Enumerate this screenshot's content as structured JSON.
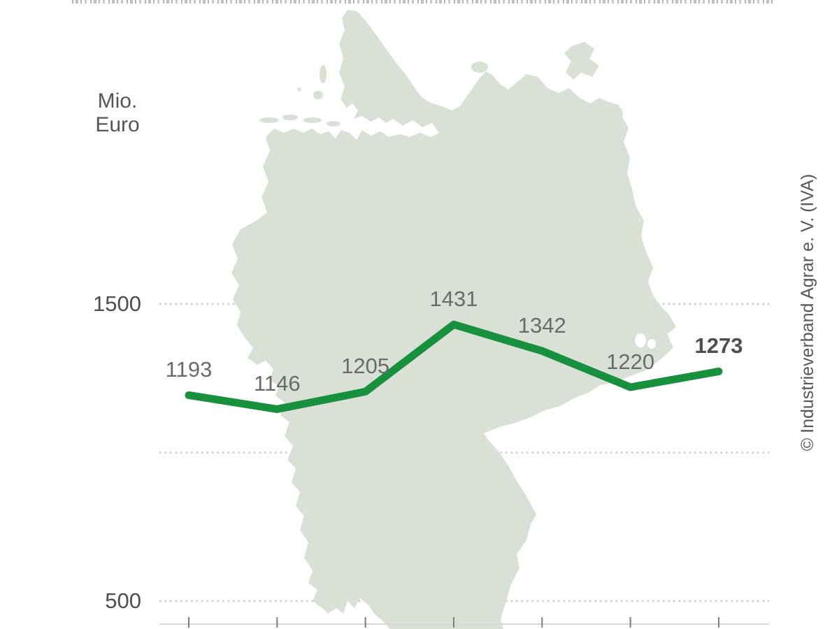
{
  "notes": "static statistics graphic; a title row exists but is cropped/illegible at the very top edge",
  "colors": {
    "line": "#18913f",
    "map_fill": "#d9e1d6",
    "gridline": "#c9c9c9",
    "axis_line": "#d8d8d8",
    "axis_tick": "#7e7e7e",
    "point_label": "#6a6a6a",
    "point_label_emphasis": "#4f4f4f",
    "axis_text": "#4e4e4e"
  },
  "y_axis": {
    "unit_lines": [
      "Mio.",
      "Euro"
    ],
    "tick_labels": [
      "1500",
      "500"
    ]
  },
  "watermark": "© Industrieverband Agrar e. V. (IVA)",
  "chart_data": {
    "type": "line",
    "unit": "Mio. Euro",
    "values": [
      1193,
      1146,
      1205,
      1431,
      1342,
      1220,
      1273
    ],
    "point_labels": [
      "1193",
      "1146",
      "1205",
      "1431",
      "1342",
      "1220",
      "1273"
    ],
    "last_point_bold": true,
    "y_gridlines": [
      1500,
      1000,
      500
    ],
    "y_axis_labeled_ticks": [
      1500,
      500
    ],
    "ylim_labeled": [
      500,
      1500
    ],
    "x_point_count": 7,
    "x_tick_labels_visible": false,
    "legend": "none",
    "background": "germany-map-silhouette"
  }
}
